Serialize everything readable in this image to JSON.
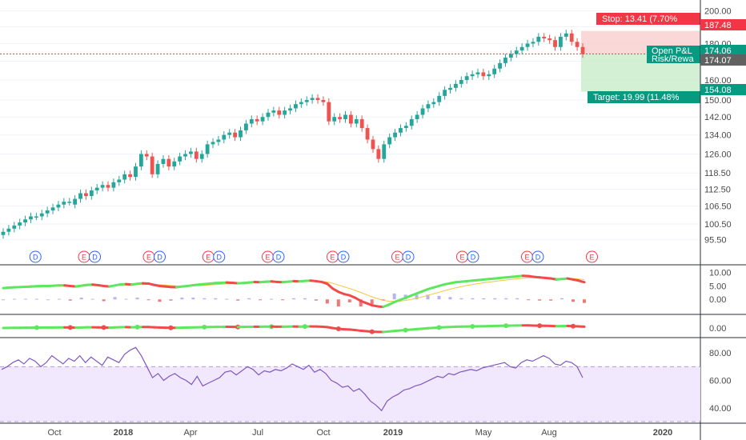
{
  "price_axis": {
    "ticks": [
      "200.00",
      "190.00",
      "180.00",
      "170.00",
      "160.00",
      "150.00",
      "142.00",
      "134.00",
      "126.00",
      "118.50",
      "112.50",
      "106.50",
      "100.50",
      "95.50"
    ],
    "tick_values": [
      200,
      190,
      180,
      170,
      160,
      150,
      142,
      134,
      126,
      118.5,
      112.5,
      106.5,
      100.5,
      95.5
    ],
    "scale": "log"
  },
  "time_axis": {
    "labels": [
      "Oct",
      "2018",
      "Apr",
      "Jul",
      "Oct",
      "2019",
      "May",
      "Aug",
      "2020"
    ],
    "bold": [
      false,
      true,
      false,
      false,
      false,
      true,
      false,
      false,
      true
    ]
  },
  "position": {
    "stop_label": "Stop: 13.41 (7.70%",
    "stop_price": "187.48",
    "entry_price": "174.06",
    "pnl_label": "Open P&L",
    "rr_label": "Risk/Rewa",
    "current_price": "174.07",
    "target_price": "154.08",
    "target_label": "Target: 19.99 (11.48%",
    "stop_value": 187.48,
    "entry_value": 174.06,
    "target_value": 154.08,
    "colors": {
      "stop_zone": "#f8c8c8",
      "target_zone": "#c9ecc9",
      "stop_tag": "#f23645",
      "target_tag": "#089981",
      "entry_tag": "#089981",
      "current_tag": "#616161"
    }
  },
  "events": {
    "items": [
      {
        "code": "D",
        "index": 3
      },
      {
        "code": "E",
        "index": 12
      },
      {
        "code": "D",
        "index": 14
      },
      {
        "code": "E",
        "index": 24
      },
      {
        "code": "D",
        "index": 26
      },
      {
        "code": "E",
        "index": 35
      },
      {
        "code": "D",
        "index": 37
      },
      {
        "code": "E",
        "index": 46
      },
      {
        "code": "D",
        "index": 48
      },
      {
        "code": "E",
        "index": 58
      },
      {
        "code": "D",
        "index": 60
      },
      {
        "code": "E",
        "index": 70
      },
      {
        "code": "D",
        "index": 72
      },
      {
        "code": "E",
        "index": 82
      },
      {
        "code": "D",
        "index": 84
      },
      {
        "code": "E",
        "index": 94
      },
      {
        "code": "D",
        "index": 96
      },
      {
        "code": "E",
        "index": 106
      }
    ],
    "colors": {
      "E": "#f23645",
      "D": "#2962ff"
    }
  },
  "panes": {
    "macd1_ticks": [
      "10.00",
      "5.00",
      "0.00"
    ],
    "macd2_ticks": [
      "0.00"
    ],
    "rsi_ticks": [
      "80.00",
      "60.00",
      "40.00"
    ],
    "rsi_band": [
      30,
      70
    ]
  },
  "chart_data": [
    {
      "type": "candlestick",
      "series_name": "",
      "x_labels": [
        "Oct",
        "2018",
        "Apr",
        "Jul",
        "Oct",
        "2019",
        "May",
        "Aug"
      ],
      "close_values": [
        98,
        99,
        100,
        101,
        102,
        103,
        103,
        104,
        105,
        106,
        107,
        108,
        108,
        109,
        111,
        110,
        112,
        113,
        114,
        113,
        115,
        116,
        118,
        117,
        121,
        126,
        125,
        118,
        122,
        124,
        121,
        123,
        125,
        126,
        127,
        124,
        126,
        130,
        131,
        132,
        134,
        135,
        133,
        136,
        139,
        141,
        140,
        142,
        144,
        145,
        143,
        145,
        146,
        148,
        149,
        150,
        151,
        150,
        149,
        140,
        142,
        141,
        143,
        139,
        141,
        137,
        132,
        128,
        124,
        130,
        133,
        135,
        137,
        138,
        141,
        143,
        146,
        148,
        149,
        152,
        155,
        156,
        158,
        160,
        162,
        163,
        164,
        162,
        163,
        166,
        169,
        172,
        174,
        176,
        178,
        180,
        181,
        184,
        183,
        182,
        178,
        184,
        186,
        181,
        178,
        174
      ],
      "open_values": [
        97,
        98,
        99,
        100,
        101,
        102,
        103,
        103,
        104,
        105,
        106,
        107,
        108,
        107,
        109,
        111,
        110,
        112,
        113,
        114,
        113,
        115,
        116,
        118,
        117,
        121,
        126,
        125,
        118,
        122,
        124,
        121,
        123,
        125,
        126,
        127,
        124,
        126,
        130,
        131,
        132,
        134,
        135,
        133,
        136,
        139,
        141,
        140,
        142,
        144,
        145,
        143,
        145,
        146,
        148,
        149,
        150,
        151,
        150,
        149,
        140,
        142,
        141,
        143,
        139,
        141,
        137,
        132,
        128,
        124,
        130,
        133,
        135,
        137,
        138,
        141,
        143,
        146,
        148,
        149,
        152,
        155,
        156,
        158,
        160,
        162,
        163,
        164,
        162,
        163,
        166,
        169,
        172,
        174,
        176,
        178,
        180,
        181,
        184,
        183,
        182,
        178,
        184,
        186,
        181,
        178
      ],
      "ylim": [
        93,
        204
      ]
    },
    {
      "type": "line",
      "series_name": "",
      "y_values": [
        4.2,
        4.4,
        4.5,
        4.6,
        4.7,
        4.8,
        4.9,
        5.0,
        5.0,
        5.1,
        5.2,
        5.2,
        5.0,
        4.8,
        5.1,
        5.4,
        5.5,
        5.3,
        5.0,
        4.8,
        5.2,
        5.6,
        5.7,
        5.5,
        5.8,
        6.0,
        5.9,
        5.4,
        5.0,
        4.8,
        4.6,
        4.5,
        4.8,
        5.0,
        5.3,
        5.5,
        5.7,
        5.9,
        6.1,
        6.2,
        6.3,
        6.2,
        6.0,
        6.1,
        6.3,
        6.5,
        6.4,
        6.6,
        6.7,
        6.5,
        6.4,
        6.6,
        6.8,
        6.7,
        6.9,
        7.0,
        6.8,
        6.5,
        5.8,
        4.0,
        2.8,
        2.0,
        1.5,
        0.6,
        -0.6,
        -1.4,
        -2.2,
        -2.6,
        -2.8,
        -2.0,
        -1.0,
        -0.2,
        0.6,
        1.4,
        2.2,
        3.0,
        3.8,
        4.4,
        5.0,
        5.6,
        6.0,
        6.4,
        6.6,
        6.8,
        7.0,
        7.2,
        7.4,
        7.6,
        7.8,
        8.0,
        8.2,
        8.4,
        8.6,
        8.8,
        8.7,
        8.4,
        8.2,
        8.0,
        7.8,
        7.4,
        7.6,
        7.8,
        7.4,
        7.0,
        6.4
      ],
      "ylim": [
        -5,
        12
      ]
    },
    {
      "type": "line",
      "series_name": "",
      "y_values": [
        68,
        70,
        73,
        75,
        72,
        76,
        74,
        70,
        73,
        78,
        75,
        72,
        76,
        74,
        78,
        73,
        77,
        74,
        71,
        77,
        75,
        73,
        79,
        82,
        84,
        78,
        70,
        62,
        65,
        60,
        63,
        65,
        62,
        60,
        57,
        63,
        56,
        58,
        60,
        62,
        66,
        67,
        64,
        67,
        70,
        68,
        64,
        67,
        66,
        68,
        67,
        69,
        72,
        70,
        68,
        71,
        66,
        68,
        65,
        60,
        58,
        55,
        56,
        52,
        54,
        50,
        45,
        42,
        38,
        45,
        48,
        50,
        53,
        54,
        56,
        57,
        59,
        61,
        63,
        62,
        65,
        64,
        66,
        67,
        68,
        67,
        69,
        70,
        71,
        72,
        73,
        70,
        69,
        73,
        75,
        74,
        76,
        78,
        76,
        72,
        71,
        74,
        73,
        70,
        62
      ],
      "ylim": [
        30,
        90
      ]
    }
  ]
}
